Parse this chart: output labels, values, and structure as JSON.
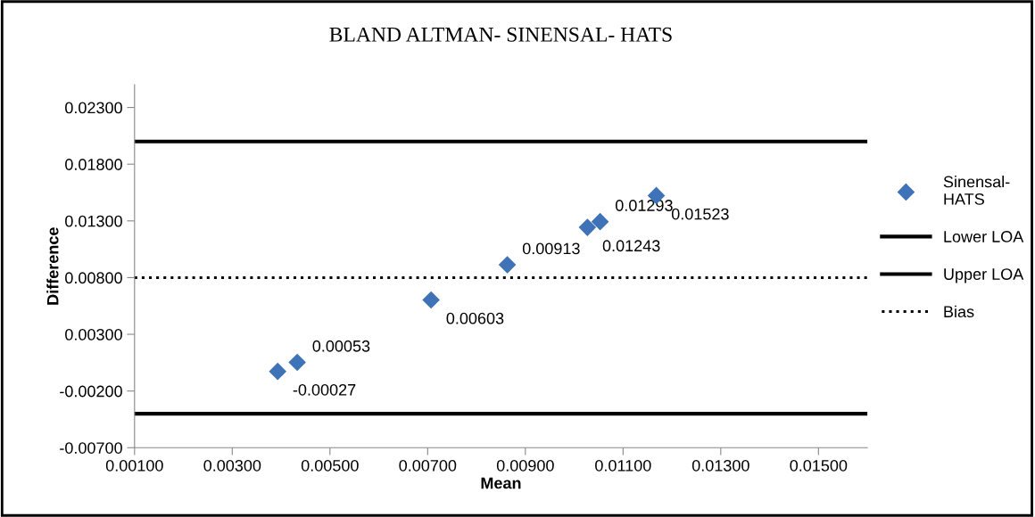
{
  "chart_data": {
    "type": "scatter",
    "title": "BLAND ALTMAN- SINENSAL- HATS",
    "xlabel": "Mean",
    "ylabel": "Difference",
    "series": [
      {
        "name": "Sinensal-\nHATS",
        "color": "#3f73b8",
        "x": [
          0.00393,
          0.00433,
          0.00707,
          0.00863,
          0.01027,
          0.01053,
          0.01168
        ],
        "values": [
          -0.00027,
          0.00053,
          0.00603,
          0.00913,
          0.01243,
          0.01293,
          0.01523
        ]
      }
    ],
    "ref_lines": [
      {
        "axis": "y",
        "value": -0.004,
        "label": "Lower LOA",
        "color": "#000000",
        "line_style": "solid"
      },
      {
        "axis": "y",
        "value": 0.02,
        "label": "Upper LOA",
        "color": "#000000",
        "line_style": "solid"
      },
      {
        "axis": "y",
        "value": 0.008,
        "label": "Bias",
        "color": "#000000",
        "line_style": "dotted"
      }
    ],
    "xlim": [
      0.001,
      0.016
    ],
    "xticks": [
      {
        "value": 0.001,
        "label": "0.00100"
      },
      {
        "value": 0.003,
        "label": "0.00300"
      },
      {
        "value": 0.005,
        "label": "0.00500"
      },
      {
        "value": 0.007,
        "label": "0.00700"
      },
      {
        "value": 0.009,
        "label": "0.00900"
      },
      {
        "value": 0.011,
        "label": "0.01100"
      },
      {
        "value": 0.013,
        "label": "0.01300"
      },
      {
        "value": 0.015,
        "label": "0.01500"
      }
    ],
    "ylim": [
      -0.007,
      0.025
    ],
    "yticks": [
      {
        "value": -0.007,
        "label": "-0.00700"
      },
      {
        "value": -0.002,
        "label": "-0.00200"
      },
      {
        "value": 0.003,
        "label": "0.00300"
      },
      {
        "value": 0.008,
        "label": "0.00800"
      },
      {
        "value": 0.013,
        "label": "0.01300"
      },
      {
        "value": 0.018,
        "label": "0.01800"
      },
      {
        "value": 0.023,
        "label": "0.02300"
      }
    ],
    "data_labels": true,
    "marker": "diamond",
    "legend": "right",
    "grid": false
  }
}
